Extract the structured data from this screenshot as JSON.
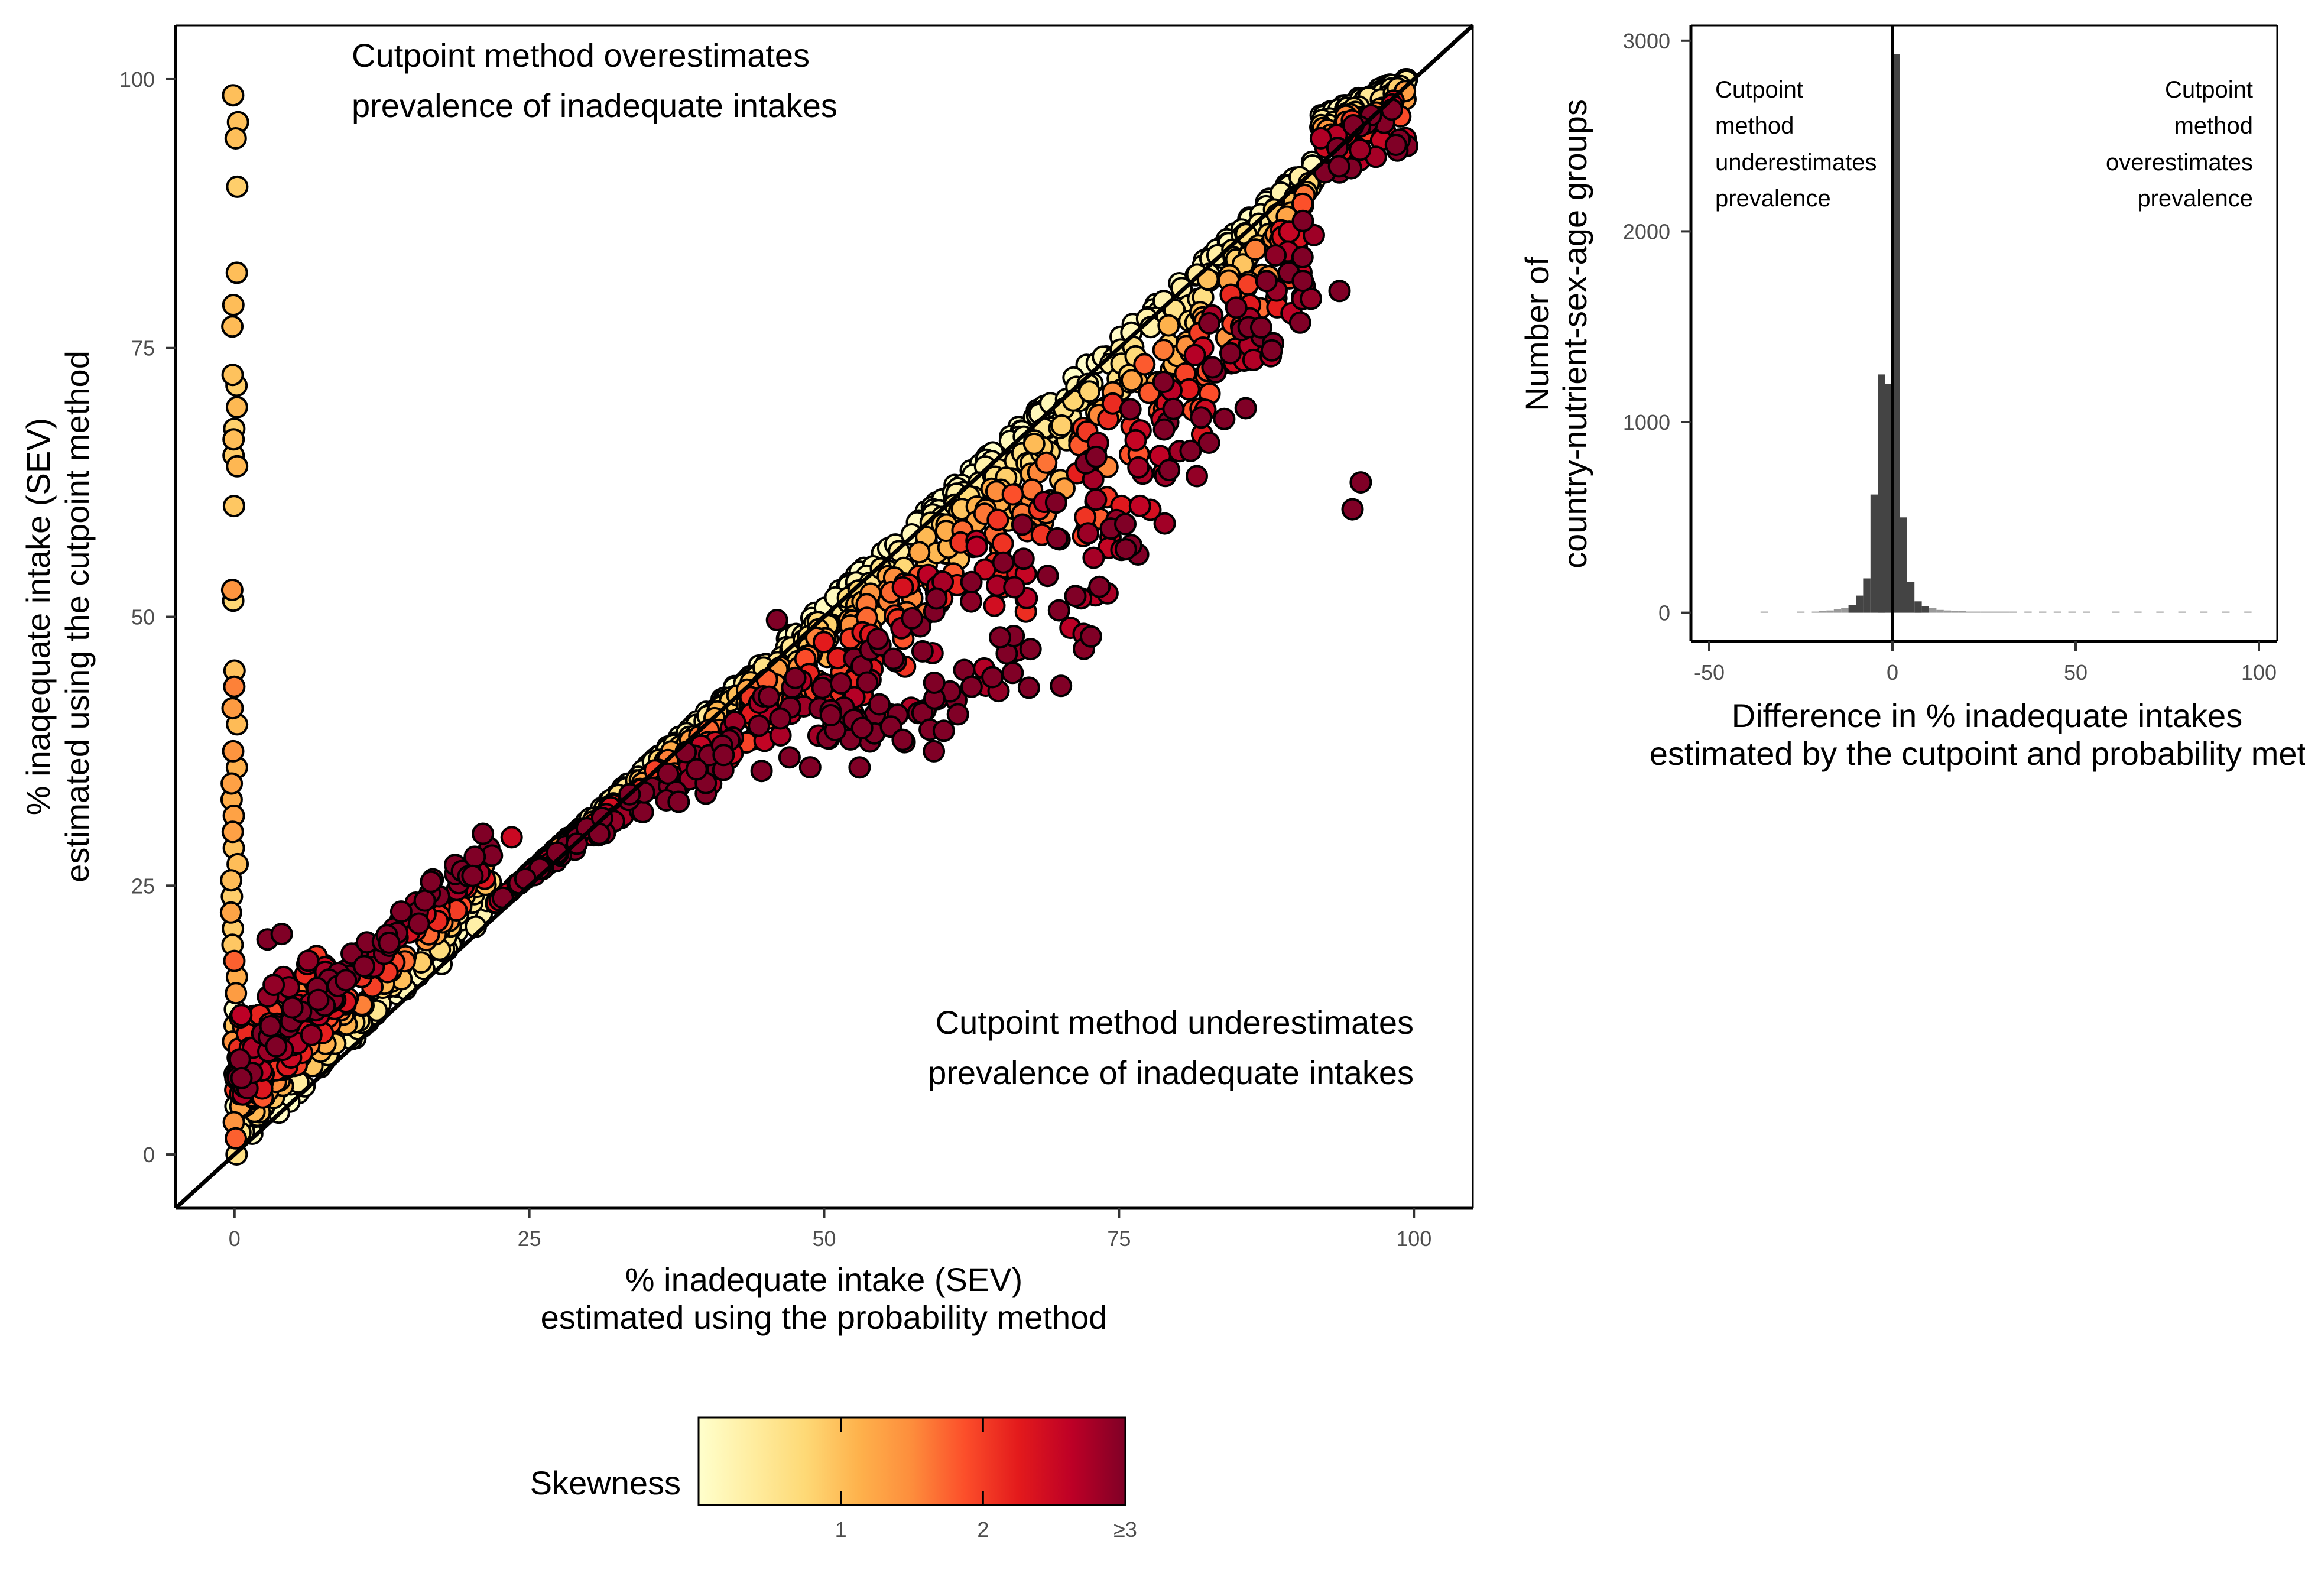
{
  "chart_data": [
    {
      "type": "scatter",
      "xlabel": [
        "% inadequate intake (SEV)",
        "estimated using the probability method"
      ],
      "ylabel": [
        "% inaqequate intake (SEV)",
        "estimated using the cutpoint method"
      ],
      "xlim": [
        -5,
        105
      ],
      "ylim": [
        -5,
        105
      ],
      "xticks": [
        0,
        25,
        50,
        75,
        100
      ],
      "yticks": [
        0,
        25,
        50,
        75,
        100
      ],
      "reference_line": "y = x",
      "annotations": [
        [
          "Cutpoint method overestimates",
          "prevalence of inadequate intakes"
        ],
        [
          "Cutpoint method underestimates",
          "prevalence of inadequate intakes"
        ]
      ],
      "color_variable": "Skewness",
      "colorbar_ticks": [
        "1",
        "2",
        "≥3"
      ],
      "colors": [
        "#ffffcc",
        "#ffeda0",
        "#fed976",
        "#feb24c",
        "#fd8d3c",
        "#fc4e2a",
        "#e31a1c",
        "#bd0026",
        "#800026"
      ],
      "x_at_zero_y": [
        98.5,
        96.0,
        94.5,
        90.0,
        82.0,
        79.0,
        77.0,
        72.5,
        71.5,
        69.5,
        67.5,
        66.5,
        65.0,
        64.0,
        60.3,
        52.5,
        51.5,
        45.0,
        43.5,
        41.5,
        40.0,
        37.5,
        36.0,
        34.5,
        33.0,
        31.5,
        30.0,
        28.5,
        27.0,
        25.5,
        24.0,
        22.5,
        21.0,
        19.5,
        18.0,
        16.5,
        15.0,
        13.5,
        12.0,
        10.5,
        9.0,
        7.5,
        6.0,
        4.5,
        3.0,
        1.5,
        0.0
      ],
      "outliers": [
        {
          "x": 46.0,
          "y": 49.7,
          "skew": 3.0
        },
        {
          "x": 59.3,
          "y": 37.5,
          "skew": 3.0
        },
        {
          "x": 53.0,
          "y": 36.0,
          "skew": 3.0
        },
        {
          "x": 62.5,
          "y": 43.5,
          "skew": 3.0
        },
        {
          "x": 67.5,
          "y": 47.0,
          "skew": 3.0
        },
        {
          "x": 93.7,
          "y": 80.3,
          "skew": 3.0
        },
        {
          "x": 95.5,
          "y": 62.5,
          "skew": 3.0
        },
        {
          "x": 94.8,
          "y": 60.0,
          "skew": 3.0
        },
        {
          "x": 2.8,
          "y": 20.0,
          "skew": 3.0
        },
        {
          "x": 4.0,
          "y": 20.5,
          "skew": 3.0
        },
        {
          "x": 33.5,
          "y": 33.5,
          "skew": 3.0
        },
        {
          "x": 23.5,
          "y": 29.5,
          "skew": 2.5
        }
      ]
    },
    {
      "type": "bar",
      "ylabel": [
        "Number of",
        "country-nutrient-sex-age groups"
      ],
      "xlabel": [
        "Difference in % inadequate intakes",
        "estimated by the cutpoint and probability meth"
      ],
      "xlim": [
        -55,
        105
      ],
      "ylim": [
        -150,
        3080
      ],
      "xticks": [
        -50,
        0,
        50,
        100
      ],
      "yticks": [
        0,
        1000,
        2000,
        3000
      ],
      "vline": 0,
      "annotations": [
        [
          "Cutpoint",
          "method",
          "underestimates",
          "prevalence"
        ],
        [
          "Cutpoint",
          "method",
          "overestimates",
          "prevalence"
        ]
      ],
      "bin_width": 2,
      "bins": [
        {
          "x": -35,
          "y": 2
        },
        {
          "x": -25,
          "y": 3
        },
        {
          "x": -21,
          "y": 5
        },
        {
          "x": -19,
          "y": 8
        },
        {
          "x": -17,
          "y": 12
        },
        {
          "x": -15,
          "y": 18
        },
        {
          "x": -13,
          "y": 25
        },
        {
          "x": -11,
          "y": 40
        },
        {
          "x": -9,
          "y": 90
        },
        {
          "x": -7,
          "y": 180
        },
        {
          "x": -5,
          "y": 620
        },
        {
          "x": -3,
          "y": 1250
        },
        {
          "x": -1,
          "y": 1200
        },
        {
          "x": 1,
          "y": 2930
        },
        {
          "x": 3,
          "y": 500
        },
        {
          "x": 5,
          "y": 160
        },
        {
          "x": 7,
          "y": 60
        },
        {
          "x": 9,
          "y": 35
        },
        {
          "x": 11,
          "y": 25
        },
        {
          "x": 13,
          "y": 15
        },
        {
          "x": 15,
          "y": 12
        },
        {
          "x": 17,
          "y": 10
        },
        {
          "x": 19,
          "y": 8
        },
        {
          "x": 21,
          "y": 6
        },
        {
          "x": 23,
          "y": 5
        },
        {
          "x": 25,
          "y": 5
        },
        {
          "x": 27,
          "y": 4
        },
        {
          "x": 29,
          "y": 4
        },
        {
          "x": 31,
          "y": 3
        },
        {
          "x": 33,
          "y": 3
        },
        {
          "x": 37,
          "y": 2
        },
        {
          "x": 41,
          "y": 2
        },
        {
          "x": 45,
          "y": 2
        },
        {
          "x": 49,
          "y": 2
        },
        {
          "x": 53,
          "y": 2
        },
        {
          "x": 61,
          "y": 1
        },
        {
          "x": 67,
          "y": 1
        },
        {
          "x": 73,
          "y": 1
        },
        {
          "x": 79,
          "y": 1
        },
        {
          "x": 85,
          "y": 1
        },
        {
          "x": 91,
          "y": 1
        },
        {
          "x": 97,
          "y": 1
        }
      ]
    }
  ]
}
